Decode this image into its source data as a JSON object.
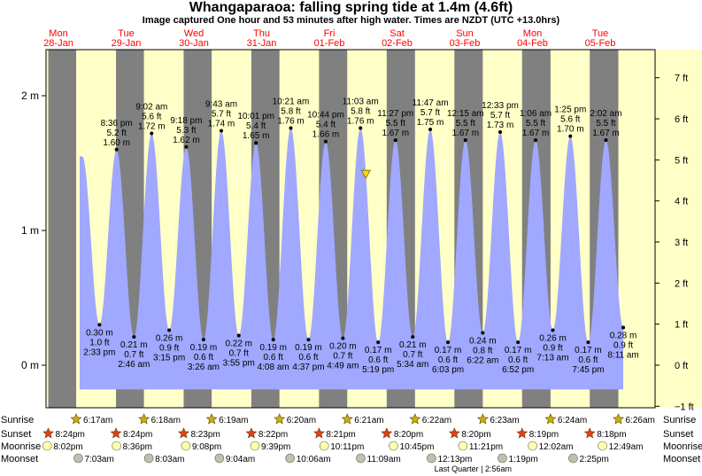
{
  "title": "Whangaparaoa: falling  spring tide at 1.4m (4.6ft)",
  "subtitle": "Image captured One hour and 53 minutes after high water. Times are NZDT (UTC +13.0hrs)",
  "colors": {
    "water": "#a0a8ff",
    "day": "#ffffc8",
    "night": "#808080",
    "day_label": "#ff0000",
    "sun_star": "#c8b400",
    "sunset_star": "#e04020",
    "moonrise": "#ffffb0",
    "moonset": "#c0c0b0",
    "marker": "#f0e000"
  },
  "days": [
    {
      "name": "Mon",
      "date": "28‑Jan"
    },
    {
      "name": "Tue",
      "date": "29‑Jan"
    },
    {
      "name": "Wed",
      "date": "30‑Jan"
    },
    {
      "name": "Thu",
      "date": "31‑Jan"
    },
    {
      "name": "Fri",
      "date": "01‑Feb"
    },
    {
      "name": "Sat",
      "date": "02‑Feb"
    },
    {
      "name": "Sun",
      "date": "03‑Feb"
    },
    {
      "name": "Mon",
      "date": "04‑Feb"
    },
    {
      "name": "Tue",
      "date": "05‑Feb"
    }
  ],
  "chart_data": {
    "type": "area",
    "title": "Whangaparaoa: falling  spring tide at 1.4m (4.6ft)",
    "y_left_unit": "m",
    "y_right_unit": "ft",
    "ylim_m": [
      -0.4,
      2.3
    ],
    "y_left_ticks": [
      {
        "v": 0,
        "label": "0 m"
      },
      {
        "v": 1,
        "label": "1 m"
      },
      {
        "v": 2,
        "label": "2 m"
      }
    ],
    "y_right_ticks": [
      {
        "v": -1,
        "label": "−1 ft"
      },
      {
        "v": 0,
        "label": "0 ft"
      },
      {
        "v": 1,
        "label": "1 ft"
      },
      {
        "v": 2,
        "label": "2 ft"
      },
      {
        "v": 3,
        "label": "3 ft"
      },
      {
        "v": 4,
        "label": "4 ft"
      },
      {
        "v": 5,
        "label": "5 ft"
      },
      {
        "v": 6,
        "label": "6 ft"
      },
      {
        "v": 7,
        "label": "7 ft"
      }
    ],
    "x_range_days": [
      -0.35,
      8.5
    ],
    "tides": [
      {
        "type": "low",
        "day": 0,
        "time": "2:33 pm",
        "m": "0.30 m",
        "ft": "1.0 ft",
        "value": 0.3
      },
      {
        "type": "high",
        "day": 0,
        "time": "8:36 pm",
        "m": "1.60 m",
        "ft": "5.2 ft",
        "value": 1.6
      },
      {
        "type": "low",
        "day": 1,
        "time": "2:46 am",
        "m": "0.21 m",
        "ft": "0.7 ft",
        "value": 0.21
      },
      {
        "type": "high",
        "day": 1,
        "time": "9:02 am",
        "m": "1.72 m",
        "ft": "5.6 ft",
        "value": 1.72
      },
      {
        "type": "low",
        "day": 1,
        "time": "3:15 pm",
        "m": "0.26 m",
        "ft": "0.9 ft",
        "value": 0.26
      },
      {
        "type": "high",
        "day": 1,
        "time": "9:18 pm",
        "m": "1.62 m",
        "ft": "5.3 ft",
        "value": 1.62
      },
      {
        "type": "low",
        "day": 2,
        "time": "3:26 am",
        "m": "0.19 m",
        "ft": "0.6 ft",
        "value": 0.19
      },
      {
        "type": "high",
        "day": 2,
        "time": "9:43 am",
        "m": "1.74 m",
        "ft": "5.7 ft",
        "value": 1.74
      },
      {
        "type": "low",
        "day": 2,
        "time": "3:55 pm",
        "m": "0.22 m",
        "ft": "0.7 ft",
        "value": 0.22
      },
      {
        "type": "high",
        "day": 2,
        "time": "10:01 pm",
        "m": "1.65 m",
        "ft": "5.4 ft",
        "value": 1.65
      },
      {
        "type": "low",
        "day": 3,
        "time": "4:08 am",
        "m": "0.19 m",
        "ft": "0.6 ft",
        "value": 0.19
      },
      {
        "type": "high",
        "day": 3,
        "time": "10:21 am",
        "m": "1.76 m",
        "ft": "5.8 ft",
        "value": 1.76
      },
      {
        "type": "low",
        "day": 3,
        "time": "4:37 pm",
        "m": "0.19 m",
        "ft": "0.6 ft",
        "value": 0.19
      },
      {
        "type": "high",
        "day": 3,
        "time": "10:44 pm",
        "m": "1.66 m",
        "ft": "5.4 ft",
        "value": 1.66
      },
      {
        "type": "low",
        "day": 4,
        "time": "4:49 am",
        "m": "0.20 m",
        "ft": "0.7 ft",
        "value": 0.2
      },
      {
        "type": "high",
        "day": 4,
        "time": "11:03 am",
        "m": "1.76 m",
        "ft": "5.8 ft",
        "value": 1.76
      },
      {
        "type": "low",
        "day": 4,
        "time": "5:19 pm",
        "m": "0.17 m",
        "ft": "0.6 ft",
        "value": 0.17
      },
      {
        "type": "high",
        "day": 4,
        "time": "11:27 pm",
        "m": "1.67 m",
        "ft": "5.5 ft",
        "value": 1.67
      },
      {
        "type": "low",
        "day": 5,
        "time": "5:34 am",
        "m": "0.21 m",
        "ft": "0.7 ft",
        "value": 0.21
      },
      {
        "type": "high",
        "day": 5,
        "time": "11:47 am",
        "m": "1.75 m",
        "ft": "5.7 ft",
        "value": 1.75
      },
      {
        "type": "low",
        "day": 5,
        "time": "6:03 pm",
        "m": "0.17 m",
        "ft": "0.6 ft",
        "value": 0.17
      },
      {
        "type": "high",
        "day": 6,
        "time": "12:15 am",
        "m": "1.67 m",
        "ft": "5.5 ft",
        "value": 1.67
      },
      {
        "type": "low",
        "day": 6,
        "time": "6:22 am",
        "m": "0.24 m",
        "ft": "0.8 ft",
        "value": 0.24
      },
      {
        "type": "high",
        "day": 6,
        "time": "12:33 pm",
        "m": "1.73 m",
        "ft": "5.7 ft",
        "value": 1.73
      },
      {
        "type": "low",
        "day": 6,
        "time": "6:52 pm",
        "m": "0.17 m",
        "ft": "0.6 ft",
        "value": 0.17
      },
      {
        "type": "high",
        "day": 7,
        "time": "1:06 am",
        "m": "1.67 m",
        "ft": "5.5 ft",
        "value": 1.67
      },
      {
        "type": "low",
        "day": 7,
        "time": "7:13 am",
        "m": "0.26 m",
        "ft": "0.9 ft",
        "value": 0.26
      },
      {
        "type": "high",
        "day": 7,
        "time": "1:25 pm",
        "m": "1.70 m",
        "ft": "5.6 ft",
        "value": 1.7
      },
      {
        "type": "low",
        "day": 7,
        "time": "7:45 pm",
        "m": "0.17 m",
        "ft": "0.6 ft",
        "value": 0.17
      },
      {
        "type": "high",
        "day": 8,
        "time": "2:02 am",
        "m": "1.67 m",
        "ft": "5.5 ft",
        "value": 1.67
      },
      {
        "type": "low",
        "day": 8,
        "time": "8:11 am",
        "m": "0.28 m",
        "ft": "0.9 ft",
        "value": 0.28
      }
    ],
    "current": {
      "day": 4,
      "time": "12:56 pm",
      "value": 1.4
    }
  },
  "almanac": {
    "sunrise_label": "Sunrise",
    "sunset_label": "Sunset",
    "moonrise_label": "Moonrise",
    "moonset_label": "Moonset",
    "sunrise": [
      {
        "day": 0,
        "time": "6:17am"
      },
      {
        "day": 1,
        "time": "6:18am"
      },
      {
        "day": 2,
        "time": "6:19am"
      },
      {
        "day": 3,
        "time": "6:20am"
      },
      {
        "day": 4,
        "time": "6:21am"
      },
      {
        "day": 5,
        "time": "6:22am"
      },
      {
        "day": 6,
        "time": "6:23am"
      },
      {
        "day": 7,
        "time": "6:24am"
      },
      {
        "day": 8,
        "time": "6:26am"
      }
    ],
    "sunset": [
      {
        "day": -1,
        "time": "8:24pm"
      },
      {
        "day": 0,
        "time": "8:24pm"
      },
      {
        "day": 1,
        "time": "8:23pm"
      },
      {
        "day": 2,
        "time": "8:22pm"
      },
      {
        "day": 3,
        "time": "8:21pm"
      },
      {
        "day": 4,
        "time": "8:20pm"
      },
      {
        "day": 5,
        "time": "8:20pm"
      },
      {
        "day": 6,
        "time": "8:19pm"
      },
      {
        "day": 7,
        "time": "8:18pm"
      }
    ],
    "moonrise": [
      {
        "day": -1,
        "time": "8:02pm"
      },
      {
        "day": 0,
        "time": "8:36pm"
      },
      {
        "day": 1,
        "time": "9:08pm"
      },
      {
        "day": 2,
        "time": "9:39pm"
      },
      {
        "day": 3,
        "time": "10:11pm"
      },
      {
        "day": 4,
        "time": "10:45pm"
      },
      {
        "day": 5,
        "time": "11:21pm"
      },
      {
        "day": 7,
        "time": "12:02am"
      },
      {
        "day": 8,
        "time": "12:49am"
      }
    ],
    "moonset": [
      {
        "day": 0,
        "time": "7:03am"
      },
      {
        "day": 1,
        "time": "8:03am"
      },
      {
        "day": 2,
        "time": "9:04am"
      },
      {
        "day": 3,
        "time": "10:06am"
      },
      {
        "day": 4,
        "time": "11:09am"
      },
      {
        "day": 5,
        "time": "12:13pm"
      },
      {
        "day": 6,
        "time": "1:19pm"
      },
      {
        "day": 7,
        "time": "2:25pm"
      }
    ],
    "moon_phase": {
      "day": 6,
      "time": "2:56am",
      "label": "Last Quarter | 2:56am"
    }
  }
}
